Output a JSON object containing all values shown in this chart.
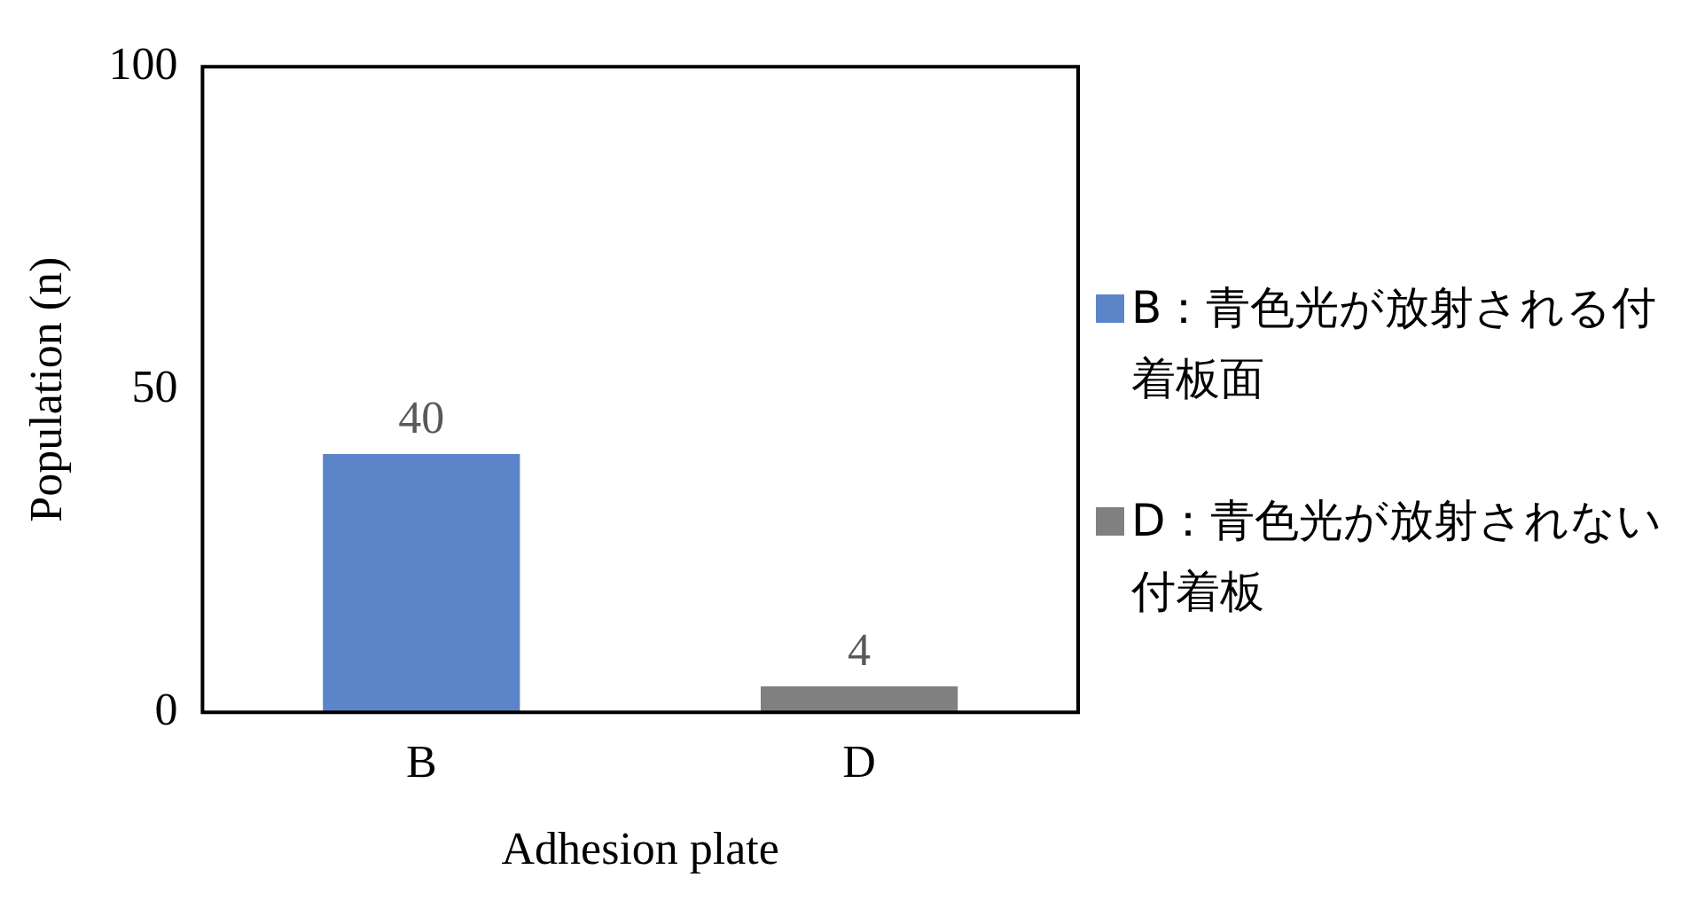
{
  "chart_data": {
    "type": "bar",
    "categories": [
      "B",
      "D"
    ],
    "series": [
      {
        "name": "B：青色光が放射される付着板面",
        "color": "#5b85c8",
        "values": [
          40,
          null
        ]
      },
      {
        "name": "D：青色光が放射されない付着板",
        "color": "#808080",
        "values": [
          null,
          4
        ]
      }
    ],
    "xlabel": "Adhesion plate",
    "ylabel": "Population (n)",
    "ylim": [
      0,
      100
    ],
    "yticks": [
      0,
      50,
      100
    ],
    "grid": false,
    "legend": "right",
    "data_labels": true
  }
}
